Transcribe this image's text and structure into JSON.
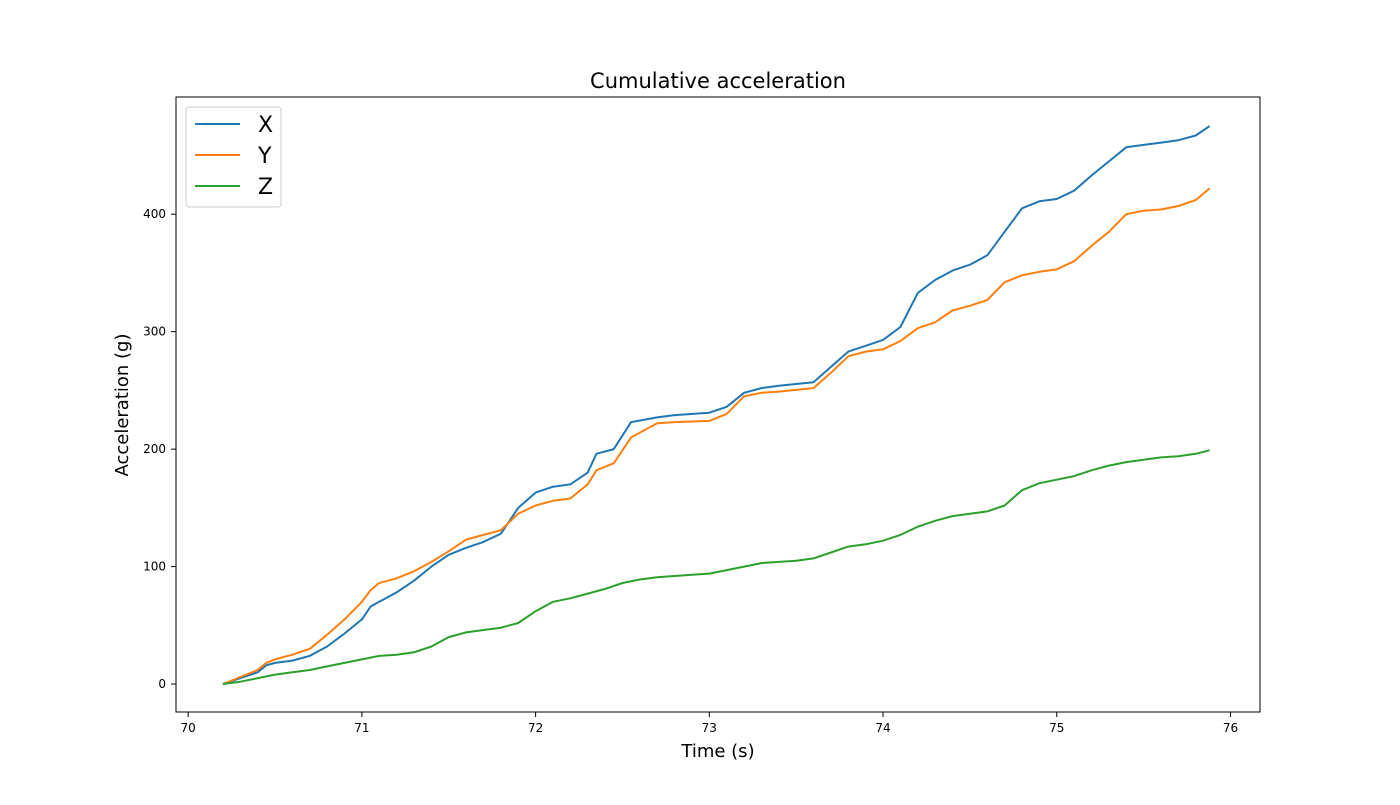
{
  "chart_data": {
    "type": "line",
    "title": "Cumulative acceleration",
    "xlabel": "Time (s)",
    "ylabel": "Acceleration (g)",
    "xlim": [
      69.93,
      76.17
    ],
    "ylim": [
      -23.8,
      499.8
    ],
    "xticks": [
      70,
      71,
      72,
      73,
      74,
      75,
      76
    ],
    "yticks": [
      0,
      100,
      200,
      300,
      400
    ],
    "grid": false,
    "legend_position": "top-left",
    "series": [
      {
        "name": "X",
        "color": "#1f77b4",
        "x": [
          70.2,
          70.3,
          70.4,
          70.45,
          70.5,
          70.6,
          70.7,
          70.8,
          70.9,
          71.0,
          71.05,
          71.1,
          71.2,
          71.3,
          71.4,
          71.5,
          71.6,
          71.7,
          71.8,
          71.9,
          72.0,
          72.1,
          72.2,
          72.3,
          72.35,
          72.45,
          72.55,
          72.7,
          72.8,
          73.0,
          73.1,
          73.2,
          73.3,
          73.4,
          73.6,
          73.7,
          73.8,
          73.9,
          74.0,
          74.1,
          74.2,
          74.3,
          74.4,
          74.5,
          74.6,
          74.7,
          74.8,
          74.9,
          75.0,
          75.1,
          75.2,
          75.3,
          75.4,
          75.5,
          75.6,
          75.7,
          75.8,
          75.88
        ],
        "values": [
          0,
          5,
          10,
          16,
          18,
          20,
          24,
          32,
          43,
          55,
          66,
          70,
          78,
          88,
          100,
          110,
          116,
          121,
          128,
          150,
          163,
          168,
          170,
          180,
          196,
          200,
          223,
          227,
          229,
          231,
          236,
          248,
          252,
          254,
          257,
          270,
          283,
          288,
          293,
          304,
          333,
          344,
          352,
          357,
          365,
          385,
          405,
          411,
          413,
          420,
          433,
          445,
          457,
          459,
          461,
          463,
          467,
          475
        ]
      },
      {
        "name": "Y",
        "color": "#ff7f0e",
        "x": [
          70.2,
          70.3,
          70.4,
          70.45,
          70.5,
          70.6,
          70.7,
          70.8,
          70.9,
          71.0,
          71.05,
          71.1,
          71.2,
          71.3,
          71.4,
          71.5,
          71.6,
          71.7,
          71.8,
          71.9,
          72.0,
          72.1,
          72.2,
          72.3,
          72.35,
          72.45,
          72.55,
          72.7,
          72.8,
          73.0,
          73.1,
          73.2,
          73.3,
          73.4,
          73.6,
          73.7,
          73.8,
          73.9,
          74.0,
          74.1,
          74.2,
          74.3,
          74.4,
          74.5,
          74.6,
          74.7,
          74.8,
          74.9,
          75.0,
          75.1,
          75.2,
          75.3,
          75.4,
          75.5,
          75.6,
          75.7,
          75.8,
          75.88
        ],
        "values": [
          0,
          6,
          12,
          18,
          21,
          25,
          30,
          42,
          55,
          70,
          80,
          86,
          90,
          96,
          104,
          113,
          123,
          127,
          131,
          145,
          152,
          156,
          158,
          170,
          182,
          188,
          210,
          222,
          223,
          224,
          230,
          245,
          248,
          249,
          252,
          265,
          279,
          283,
          285,
          292,
          303,
          308,
          318,
          322,
          327,
          342,
          348,
          351,
          353,
          360,
          373,
          385,
          400,
          403,
          404,
          407,
          412,
          422
        ]
      },
      {
        "name": "Z",
        "color": "#2ca02c",
        "x": [
          70.2,
          70.3,
          70.4,
          70.5,
          70.6,
          70.7,
          70.8,
          70.9,
          71.0,
          71.1,
          71.2,
          71.3,
          71.4,
          71.5,
          71.6,
          71.7,
          71.8,
          71.9,
          72.0,
          72.1,
          72.2,
          72.3,
          72.4,
          72.5,
          72.6,
          72.7,
          72.8,
          72.9,
          73.0,
          73.1,
          73.2,
          73.3,
          73.4,
          73.5,
          73.6,
          73.7,
          73.8,
          73.9,
          74.0,
          74.1,
          74.2,
          74.3,
          74.4,
          74.5,
          74.6,
          74.7,
          74.8,
          74.9,
          75.0,
          75.1,
          75.2,
          75.3,
          75.4,
          75.5,
          75.6,
          75.7,
          75.8,
          75.88
        ],
        "values": [
          0,
          2,
          5,
          8,
          10,
          12,
          15,
          18,
          21,
          24,
          25,
          27,
          32,
          40,
          44,
          46,
          48,
          52,
          62,
          70,
          73,
          77,
          81,
          86,
          89,
          91,
          92,
          93,
          94,
          97,
          100,
          103,
          104,
          105,
          107,
          112,
          117,
          119,
          122,
          127,
          134,
          139,
          143,
          145,
          147,
          152,
          165,
          171,
          174,
          177,
          182,
          186,
          189,
          191,
          193,
          194,
          196,
          199
        ]
      }
    ]
  }
}
